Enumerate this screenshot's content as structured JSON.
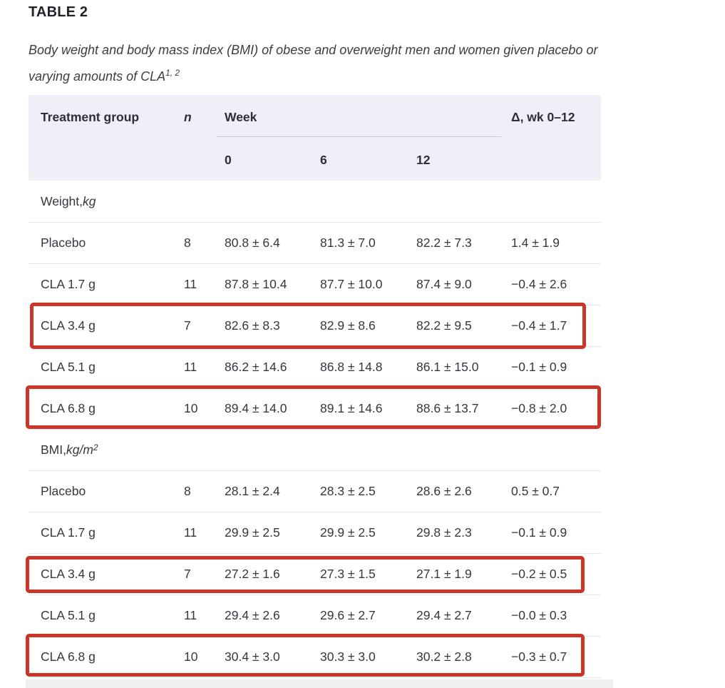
{
  "title": "TABLE 2",
  "caption": {
    "line1": "Body weight and body mass index (BMI) of obese and overweight men and women given placebo or",
    "line2": "varying amounts of CLA",
    "superscript": "1, 2"
  },
  "table": {
    "columns": {
      "treatment": "Treatment group",
      "n": "n",
      "week": "Week",
      "delta": "Δ, wk 0–12"
    },
    "week_ticks": [
      "0",
      "6",
      "12"
    ],
    "sections": [
      {
        "label_prefix": "Weight, ",
        "label_unit": "kg",
        "label_sup": "",
        "rows": [
          {
            "group": "Placebo",
            "n": "8",
            "week0": "80.8 ± 6.4",
            "week6": "81.3 ± 7.0",
            "week12": "82.2 ± 7.3",
            "delta": "1.4 ± 1.9",
            "highlighted": false
          },
          {
            "group": "CLA 1.7 g",
            "n": "11",
            "week0": "87.8 ± 10.4",
            "week6": "87.7 ± 10.0",
            "week12": "87.4 ± 9.0",
            "delta": "−0.4 ± 2.6",
            "highlighted": false
          },
          {
            "group": "CLA 3.4 g",
            "n": "7",
            "week0": "82.6 ± 8.3",
            "week6": "82.9 ± 8.6",
            "week12": "82.2 ± 9.5",
            "delta": "−0.4 ± 1.7",
            "highlighted": true
          },
          {
            "group": "CLA 5.1 g",
            "n": "11",
            "week0": "86.2 ± 14.6",
            "week6": "86.8 ± 14.8",
            "week12": "86.1 ± 15.0",
            "delta": "−0.1 ± 0.9",
            "highlighted": false
          },
          {
            "group": "CLA 6.8 g",
            "n": "10",
            "week0": "89.4 ± 14.0",
            "week6": "89.1 ± 14.6",
            "week12": "88.6 ± 13.7",
            "delta": "−0.8 ± 2.0",
            "highlighted": true
          }
        ]
      },
      {
        "label_prefix": "BMI, ",
        "label_unit": "kg/m",
        "label_sup": "2",
        "rows": [
          {
            "group": "Placebo",
            "n": "8",
            "week0": "28.1 ± 2.4",
            "week6": "28.3 ± 2.5",
            "week12": "28.6 ± 2.6",
            "delta": "0.5 ± 0.7",
            "highlighted": false
          },
          {
            "group": "CLA 1.7 g",
            "n": "11",
            "week0": "29.9 ± 2.5",
            "week6": "29.9 ± 2.5",
            "week12": "29.8 ± 2.3",
            "delta": "−0.1 ± 0.9",
            "highlighted": false
          },
          {
            "group": "CLA 3.4 g",
            "n": "7",
            "week0": "27.2 ± 1.6",
            "week6": "27.3 ± 1.5",
            "week12": "27.1 ± 1.9",
            "delta": "−0.2 ± 0.5",
            "highlighted": true
          },
          {
            "group": "CLA 5.1 g",
            "n": "11",
            "week0": "29.4 ± 2.6",
            "week6": "29.6 ± 2.7",
            "week12": "29.4 ± 2.7",
            "delta": "−0.0 ± 0.3",
            "highlighted": false
          },
          {
            "group": "CLA 6.8 g",
            "n": "10",
            "week0": "30.4 ± 3.0",
            "week6": "30.3 ± 3.0",
            "week12": "30.2 ± 2.8",
            "delta": "−0.3 ± 0.7",
            "highlighted": true
          }
        ]
      }
    ]
  },
  "colors": {
    "header_background": "#eff0f7",
    "highlight_border": "#ca3529",
    "row_separator": "#e7e7e8",
    "body_text": "#34373e"
  }
}
